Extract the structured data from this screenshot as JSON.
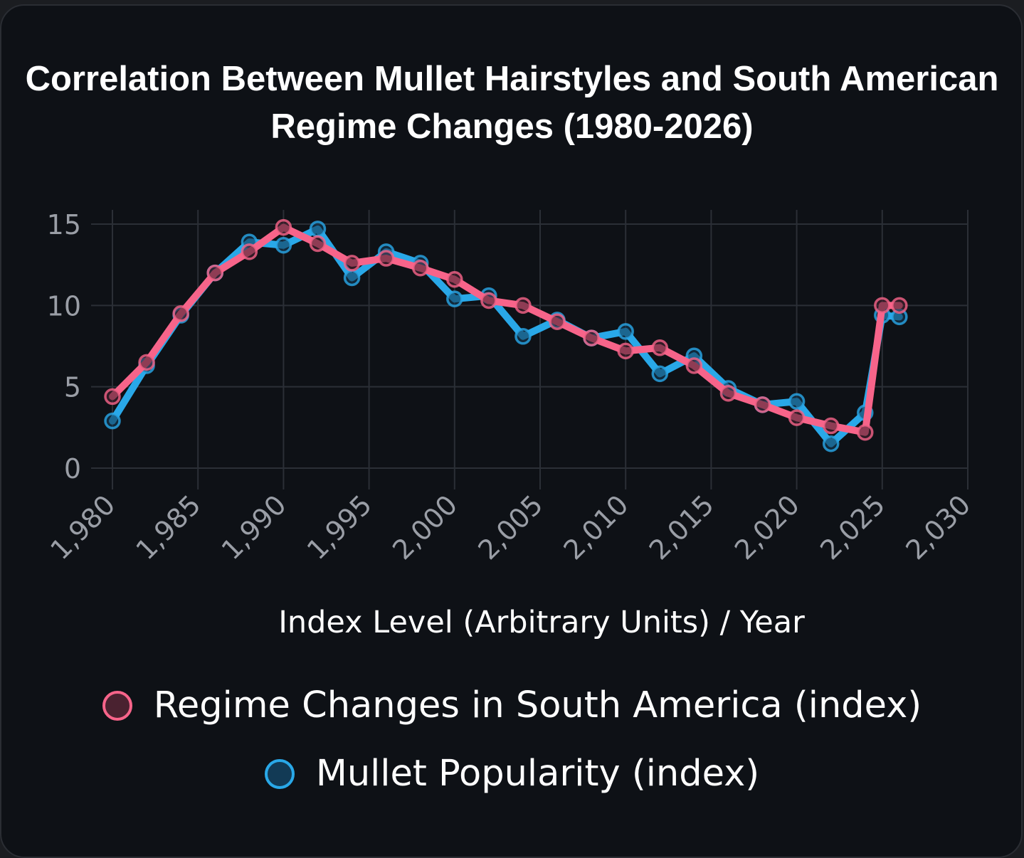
{
  "chart_data": {
    "type": "line",
    "title": "Correlation Between Mullet Hairstyles and South American Regime Changes (1980-2026)",
    "xlabel": "Index Level (Arbitrary Units) / Year",
    "ylabel": "",
    "xlim": [
      1980,
      2030
    ],
    "ylim": [
      0,
      15
    ],
    "xticks": [
      "1,980",
      "1,985",
      "1,990",
      "1,995",
      "2,000",
      "2,005",
      "2,010",
      "2,015",
      "2,020",
      "2,025",
      "2,030"
    ],
    "xtick_values": [
      1980,
      1985,
      1990,
      1995,
      2000,
      2005,
      2010,
      2015,
      2020,
      2025,
      2030
    ],
    "yticks": [
      "0",
      "5",
      "10",
      "15"
    ],
    "ytick_values": [
      0,
      5,
      10,
      15
    ],
    "grid": true,
    "legend_position": "bottom",
    "x": [
      1980,
      1982,
      1984,
      1986,
      1988,
      1990,
      1992,
      1994,
      1996,
      1998,
      2000,
      2002,
      2004,
      2006,
      2008,
      2010,
      2012,
      2014,
      2016,
      2018,
      2020,
      2022,
      2024,
      2025,
      2026
    ],
    "series": [
      {
        "name": "Mullet Popularity (index)",
        "color": "#29a8e8",
        "values": [
          2.9,
          6.3,
          9.4,
          12.0,
          13.9,
          13.7,
          14.7,
          11.7,
          13.3,
          12.6,
          10.4,
          10.6,
          8.1,
          9.1,
          8.0,
          8.4,
          5.8,
          6.9,
          4.9,
          3.9,
          4.1,
          1.5,
          3.4,
          9.4,
          9.3
        ]
      },
      {
        "name": "Regime Changes in South America (index)",
        "color": "#f7648a",
        "values": [
          4.4,
          6.5,
          9.5,
          12.0,
          13.3,
          14.8,
          13.8,
          12.6,
          12.9,
          12.3,
          11.6,
          10.3,
          10.0,
          9.0,
          8.0,
          7.2,
          7.4,
          6.3,
          4.6,
          3.9,
          3.1,
          2.6,
          2.2,
          10.0,
          10.0
        ]
      }
    ]
  },
  "legend": [
    {
      "label": "Regime Changes in South America (index)",
      "color": "#f7648a",
      "fill": "#4a2230"
    },
    {
      "label": "Mullet Popularity (index)",
      "color": "#29a8e8",
      "fill": "#123a55"
    }
  ]
}
